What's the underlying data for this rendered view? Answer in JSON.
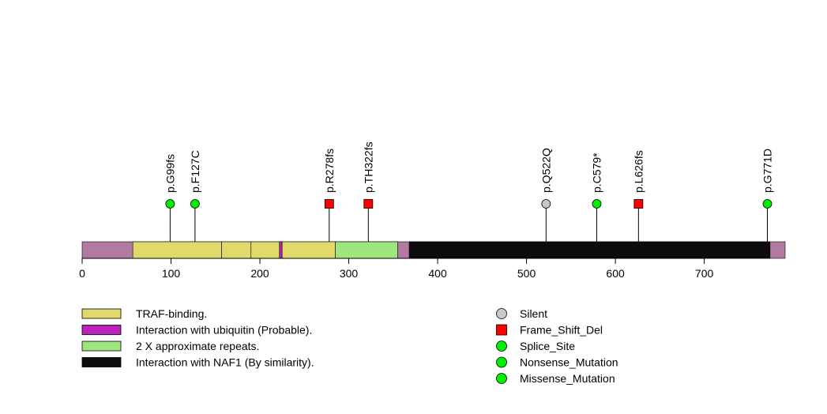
{
  "chart_data": {
    "type": "lollipop",
    "protein_length": 791,
    "axis": {
      "xlim": [
        0,
        791
      ],
      "ticks": [
        0,
        100,
        200,
        300,
        400,
        500,
        600,
        700
      ]
    },
    "backbone_color": "#b07aa1",
    "domains": [
      {
        "start": 57,
        "end": 157,
        "legend": "TRAF-binding.",
        "color": "#e1d96b"
      },
      {
        "start": 157,
        "end": 190,
        "legend": "TRAF-binding.",
        "color": "#e1d96b"
      },
      {
        "start": 190,
        "end": 222,
        "legend": "TRAF-binding.",
        "color": "#e1d96b"
      },
      {
        "start": 222,
        "end": 225,
        "legend": "Interaction with ubiquitin (Probable).",
        "color": "#bb22bb"
      },
      {
        "start": 225,
        "end": 285,
        "legend": "TRAF-binding.",
        "color": "#e1d96b"
      },
      {
        "start": 285,
        "end": 355,
        "legend": "2 X approximate repeats.",
        "color": "#9de57c"
      },
      {
        "start": 368,
        "end": 774,
        "legend": "Interaction with NAF1 (By similarity).",
        "color": "#0d0b0d"
      }
    ],
    "mutations": [
      {
        "position": 99,
        "label": "p.G99fs",
        "type": "Splice_Site"
      },
      {
        "position": 127,
        "label": "p.F127C",
        "type": "Missense_Mutation"
      },
      {
        "position": 278,
        "label": "p.R278fs",
        "type": "Frame_Shift_Del"
      },
      {
        "position": 322,
        "label": "p.TH322fs",
        "type": "Frame_Shift_Del"
      },
      {
        "position": 522,
        "label": "p.Q522Q",
        "type": "Silent"
      },
      {
        "position": 579,
        "label": "p.C579*",
        "type": "Nonsense_Mutation"
      },
      {
        "position": 626,
        "label": "p.L626fs",
        "type": "Frame_Shift_Del"
      },
      {
        "position": 771,
        "label": "p.G771D",
        "type": "Missense_Mutation"
      }
    ],
    "domain_legend": [
      {
        "label": "TRAF-binding.",
        "color": "#e1d96b"
      },
      {
        "label": "Interaction with ubiquitin (Probable).",
        "color": "#bb22bb"
      },
      {
        "label": "2 X approximate repeats.",
        "color": "#9de57c"
      },
      {
        "label": "Interaction with NAF1 (By similarity).",
        "color": "#0d0b0d"
      }
    ],
    "mutation_legend": [
      {
        "label": "Silent",
        "shape": "circle",
        "color": "#c8c8c8"
      },
      {
        "label": "Frame_Shift_Del",
        "shape": "square",
        "color": "#ff0000"
      },
      {
        "label": "Splice_Site",
        "shape": "circle",
        "color": "#00ee00"
      },
      {
        "label": "Nonsense_Mutation",
        "shape": "circle",
        "color": "#00ee00"
      },
      {
        "label": "Missense_Mutation",
        "shape": "circle",
        "color": "#00ee00"
      }
    ],
    "mutation_colors": {
      "Silent": "#c8c8c8",
      "Frame_Shift_Del": "#ff0000",
      "Splice_Site": "#00ee00",
      "Nonsense_Mutation": "#00ee00",
      "Missense_Mutation": "#00ee00"
    },
    "mutation_shapes": {
      "Silent": "circle",
      "Frame_Shift_Del": "square",
      "Splice_Site": "circle",
      "Nonsense_Mutation": "circle",
      "Missense_Mutation": "circle"
    }
  }
}
